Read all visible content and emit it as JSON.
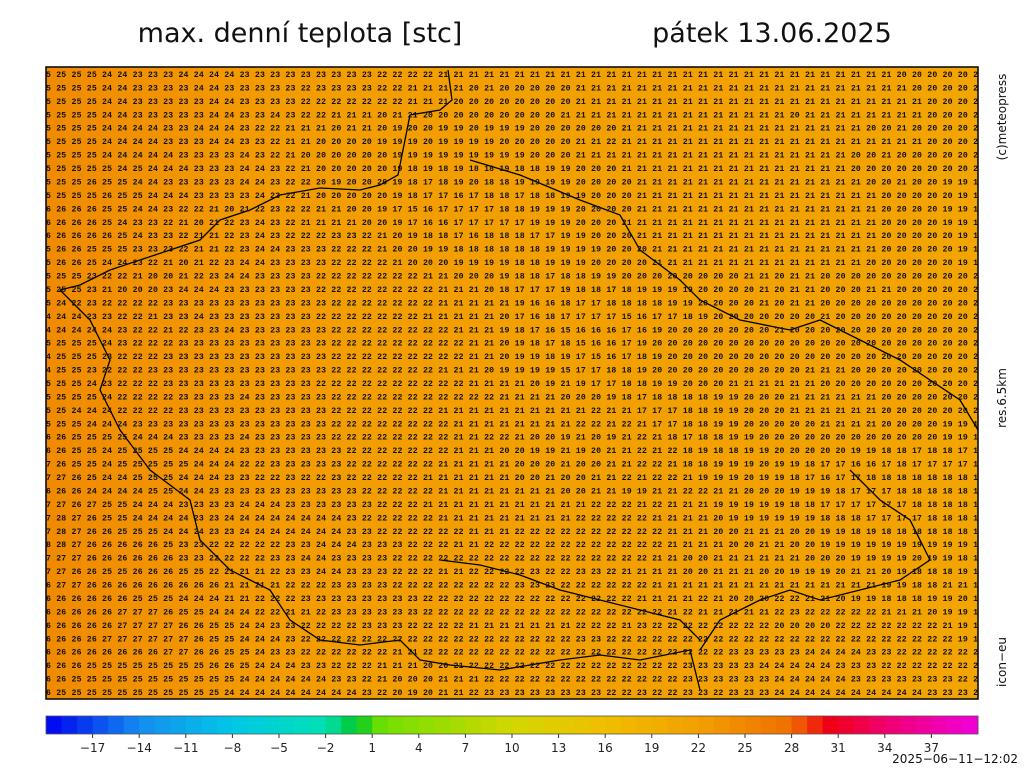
{
  "header": {
    "title": "max. denní teplota [stc]",
    "date": "pátek 13.06.2025"
  },
  "side_labels": [
    "(c)meteopress",
    "res.6.5km",
    "icon−eu"
  ],
  "grid_rows": [
    "5 25 25 25 24 24 23 23 23 24 24 24 24 23 23 23 23 23 23 23 23 23 22 22 22 22 21 21 21 21 21 21 21 21 21 21 21 21 21 21 21 21 21 21 21 21 21 21 21 21 21 21 21 21 21 21 20 20 20 20 20 2",
    "5 25 25 25 24 24 23 23 23 23 24 24 23 23 23 23 23 22 23 23 23 23 22 22 21 21 21 21 20 21 20 20 20 20 20 21 21 21 21 21 21 21 21 21 21 21 21 21 21 21 21 21 21 21 21 21 21 20 20 20 20 2",
    "5 25 25 25 24 24 23 23 23 23 23 24 24 23 23 23 23 22 22 22 22 22 22 22 21 21 21 20 20 20 20 20 20 20 20 21 21 21 21 21 21 21 21 21 21 21 21 21 21 21 21 21 21 21 21 21 21 21 20 20 20 2",
    "5 25 25 25 24 24 23 23 23 23 23 24 24 23 23 24 23 22 22 21 21 21 20 21 21 20 20 20 20 20 20 20 20 20 21 21 21 21 21 21 21 21 21 21 21 21 21 21 21 20 21 21 21 21 21 21 21 21 20 20 20 2",
    "5 25 25 25 24 24 24 24 23 23 24 24 24 23 22 22 21 21 21 20 21 21 20 19 20 20 19 19 20 19 19 19 20 20 20 20 20 20 21 21 21 21 21 21 21 21 21 21 21 21 21 21 21 21 20 20 21 20 20 20 20 2",
    "5 25 25 25 24 24 24 24 23 23 23 24 24 23 23 22 21 21 20 20 20 20 19 19 19 20 19 19 19 19 20 20 20 20 20 21 21 22 21 21 21 21 21 21 21 21 21 21 21 21 21 21 21 21 21 21 21 21 20 20 20 2",
    "5 25 25 25 24 24 24 24 24 23 23 23 23 24 23 22 21 20 20 20 20 20 20 19 19 19 19 19 19 19 19 19 20 20 20 21 21 21 21 21 21 21 21 21 21 21 21 21 21 21 21 21 21 20 20 21 20 20 20 20 20 2",
    "5 25 25 25 25 24 25 24 24 24 23 23 23 24 24 23 22 21 20 20 20 20 20 19 18 19 18 19 18 18 19 18 18 19 19 20 20 20 21 21 21 21 21 21 21 21 21 21 21 21 21 21 21 20 20 20 20 20 20 20 20 2",
    "5 25 25 26 25 25 24 24 23 23 23 23 23 24 24 23 22 22 20 19 20 20 20 19 18 17 18 19 20 18 18 19 19 19 19 20 20 20 20 21 21 21 21 21 21 21 21 21 21 21 21 21 21 21 20 20 21 20 20 19 19 1",
    "5 25 25 25 26 25 25 24 24 24 23 23 23 23 24 23 22 21 20 20 20 20 20 19 18 17 17 16 17 18 18 17 18 18 19 19 20 20 20 21 21 21 21 21 21 21 21 21 21 21 21 21 21 21 21 20 20 20 20 20 19 1",
    "6 26 26 26 25 25 24 24 23 22 22 21 20 21 22 23 22 22 21 21 20 20 19 17 15 16 17 17 17 17 18 18 19 19 19 20 20 20 20 21 21 21 21 21 21 21 21 21 21 21 21 21 21 21 21 20 20 20 20 19 19 1",
    "6 26 26 26 25 24 23 23 22 21 20 21 22 23 24 23 22 21 21 21 21 20 20 19 17 16 16 17 17 17 17 17 19 19 19 20 20 20 21 21 21 21 21 21 21 21 21 21 21 21 21 21 21 21 21 20 20 20 20 19 19 1",
    "6 26 26 26 26 25 24 23 23 22 21 21 22 23 24 23 22 22 22 23 23 22 21 20 19 18 18 17 16 18 18 18 17 17 19 19 20 20 20 21 21 21 21 21 21 21 21 21 21 21 21 21 21 21 21 20 20 20 20 20 19 1",
    "5 26 26 25 25 25 23 23 23 22 21 21 22 23 24 24 23 23 23 22 22 22 21 20 20 19 19 18 18 18 18 18 18 19 19 19 19 20 20 20 21 21 21 21 21 21 21 21 21 21 21 21 21 21 21 20 20 20 20 20 19 1",
    "5 26 26 25 24 24 23 22 21 20 21 22 23 24 24 23 23 23 23 22 22 22 22 21 20 20 20 19 19 19 19 18 18 19 19 19 20 20 20 20 21 21 21 21 21 21 21 21 21 21 21 21 21 21 20 20 20 20 20 20 19 1",
    "5 25 25 23 22 22 21 20 20 21 22 23 24 24 23 23 23 23 22 22 22 22 22 22 22 21 21 20 20 20 19 18 18 17 18 18 19 19 20 20 20 20 20 20 20 20 21 21 20 21 21 20 20 20 20 20 20 20 20 20 20 2",
    "5 25 25 23 21 20 20 20 23 24 24 24 23 23 23 23 23 23 22 22 22 22 22 22 22 22 21 21 21 20 18 17 17 17 19 18 18 17 18 19 19 19 19 20 20 20 20 21 20 21 21 20 20 20 21 21 20 20 20 20 20 2",
    "5 24 22 23 22 22 22 22 23 23 23 23 23 23 23 23 23 23 23 22 22 22 22 22 22 22 21 21 21 21 21 19 16 16 18 17 17 18 18 18 18 19 19 20 20 20 20 21 20 21 21 20 20 20 20 20 20 20 20 20 20 2",
    "4 24 24 23 23 22 22 21 23 23 24 23 23 23 23 23 23 23 22 22 22 22 22 22 22 21 21 21 21 21 20 17 16 18 17 17 17 17 15 16 17 17 18 19 20 20 20 20 20 20 20 21 20 20 20 20 20 20 20 20 20 2",
    "4 24 24 24 24 23 22 22 21 22 23 23 24 23 23 23 23 23 23 22 22 22 22 22 22 22 22 21 21 21 19 18 17 16 15 16 16 16 17 16 19 20 20 20 20 20 20 20 21 20 20 20 20 20 20 20 20 20 20 20 20 2",
    "5 25 25 25 24 23 22 22 22 23 23 23 23 23 23 23 23 23 23 22 22 22 22 22 22 22 22 22 21 21 20 19 18 17 18 15 16 16 17 19 20 20 20 20 20 20 20 20 20 20 20 20 20 20 20 20 20 20 20 20 20 2",
    "4 25 25 25 23 22 22 22 23 23 23 23 23 23 23 23 23 23 23 22 22 22 22 22 22 22 22 22 21 21 20 19 19 18 19 17 15 16 17 18 19 20 20 20 20 20 20 20 20 20 20 20 20 20 20 20 20 20 20 20 20 2",
    "4 25 25 23 22 22 22 23 23 23 23 23 23 23 23 23 23 23 23 22 22 22 22 22 22 22 21 21 21 20 19 19 19 19 15 17 17 18 18 19 20 20 20 20 20 20 20 20 20 20 21 21 21 20 20 20 20 20 20 20 20 2",
    "5 25 25 24 23 22 22 22 23 23 23 23 23 23 23 23 23 23 22 22 22 22 22 22 22 22 22 22 21 21 21 21 20 19 21 19 17 17 18 18 19 19 20 20 20 21 21 21 21 21 21 20 20 20 20 20 20 20 20 20 20 2",
    "5 25 25 25 24 22 22 22 22 23 23 23 23 24 23 23 23 23 23 22 22 22 22 22 22 22 22 22 22 22 21 21 21 21 20 20 20 19 18 17 18 18 18 18 19 19 20 20 20 21 21 21 21 21 21 20 20 20 20 20 20 2",
    "5 25 24 24 24 22 22 22 22 23 23 23 23 23 23 23 23 23 23 22 22 22 22 22 22 22 21 21 21 21 21 21 21 21 21 21 22 21 21 17 17 17 18 18 19 19 20 20 20 21 21 21 21 21 21 20 20 20 20 20 20 2",
    "5 25 25 24 24 24 23 23 23 23 23 23 23 23 23 23 23 23 23 22 22 22 22 22 22 22 22 21 21 21 21 21 21 21 21 22 22 21 22 21 17 17 18 18 19 19 20 20 20 20 20 21 21 21 21 20 20 20 20 19 19 1",
    "6 26 25 25 25 25 24 24 24 23 23 23 23 24 23 23 23 23 23 22 22 22 22 22 22 22 22 21 21 22 22 21 20 20 19 21 20 19 21 22 21 18 17 18 18 19 19 20 20 20 20 20 20 20 20 20 20 20 20 19 19 1",
    "6 26 25 25 24 25 25 25 25 24 24 24 24 23 23 23 23 23 23 23 22 22 22 22 22 22 22 21 21 21 20 20 19 19 21 19 20 21 21 22 21 22 18 19 18 18 19 19 20 20 20 20 20 19 19 18 18 17 18 18 17 1",
    "7 26 25 25 24 25 25 25 25 25 24 24 24 22 22 23 23 23 23 23 22 22 22 22 22 22 21 21 21 21 21 20 20 20 21 20 20 21 21 22 22 21 18 18 19 19 19 20 19 19 18 17 17 16 16 17 18 17 17 17 17 1",
    "7 27 26 25 24 24 25 25 25 24 24 24 23 23 22 22 23 22 22 23 22 22 22 22 22 21 21 21 21 21 21 20 20 21 20 20 21 21 22 21 22 22 21 19 19 19 20 19 19 18 17 16 17 17 18 18 18 18 18 18 18 1",
    "6 26 26 24 24 24 24 25 25 24 24 23 23 23 23 23 23 23 23 23 23 22 22 22 22 22 21 21 21 21 21 21 21 21 20 20 21 21 19 19 21 21 22 22 21 21 20 20 20 19 19 19 18 17 17 17 18 18 18 18 18 1",
    "7 27 26 27 25 25 24 24 24 23 23 23 23 24 24 24 23 23 23 23 23 23 22 22 22 21 21 21 21 21 21 21 21 21 21 21 22 22 22 21 22 21 21 21 19 19 19 19 19 18 18 17 17 17 17 17 17 18 18 18 18 1",
    "7 28 27 26 25 25 24 24 24 24 23 23 24 24 24 24 24 24 24 24 23 22 22 22 22 22 21 21 21 21 21 21 21 21 21 22 22 22 22 22 21 21 21 21 20 19 19 19 19 19 19 18 18 18 17 17 17 17 18 18 18 1",
    "7 28 27 26 26 25 25 25 24 24 24 23 23 24 24 24 24 24 24 24 23 23 22 22 22 22 22 22 21 21 21 22 22 22 22 22 22 22 22 22 22 21 21 21 20 20 21 21 21 20 20 19 19 18 19 18 18 18 18 18 18 1",
    "8 28 27 26 26 26 26 26 25 23 23 22 22 22 22 22 23 23 24 24 24 23 23 23 22 22 22 21 21 22 22 22 22 22 22 22 22 22 22 22 22 21 21 21 21 20 20 21 21 20 20 19 19 19 19 19 19 19 19 19 19 1",
    "7 27 27 26 26 26 26 26 26 23 23 22 22 22 22 23 23 24 24 23 23 23 23 22 22 22 22 22 22 22 22 22 22 22 22 22 22 22 22 22 21 21 20 20 21 21 21 21 21 21 20 20 20 19 19 19 19 20 19 19 18 1",
    "7 27 26 26 25 25 26 26 26 25 25 22 21 21 21 22 23 23 24 24 23 23 23 22 22 22 21 21 22 22 22 22 23 22 22 23 23 22 21 21 21 21 20 20 21 21 21 20 20 19 19 19 20 21 21 20 19 18 18 18 19 1",
    "6 27 27 26 26 26 26 26 26 26 26 26 21 21 21 21 22 22 22 23 23 23 23 22 22 22 22 22 22 22 22 23 23 23 22 22 22 22 22 22 21 21 21 21 21 21 21 21 21 21 21 21 21 21 21 19 19 18 18 21 21 1",
    "6 26 26 26 26 26 25 25 25 24 24 24 21 21 22 22 22 23 23 23 23 23 23 23 23 22 22 22 22 22 22 22 22 22 22 22 22 22 22 21 21 21 21 22 21 20 20 20 22 22 21 21 20 19 19 18 18 18 19 19 20 1",
    "6 26 26 26 26 27 27 27 26 25 25 24 24 24 22 22 21 21 22 23 23 23 23 23 23 22 22 22 22 22 22 22 22 22 22 22 22 22 22 22 22 21 22 21 21 21 21 21 22 23 22 22 22 22 22 21 21 21 20 19 19 1",
    "6 26 26 26 26 27 27 27 27 26 26 25 25 24 24 23 23 22 22 22 22 23 23 23 22 22 22 22 21 21 21 21 21 21 21 22 22 22 21 23 22 22 22 22 22 22 22 22 20 20 20 20 22 22 22 22 22 22 22 21 19 1",
    "6 26 26 26 27 27 27 27 27 27 26 25 25 24 24 24 23 22 22 22 22 22 22 22 22 22 22 22 22 22 22 22 22 22 22 23 23 22 22 22 22 22 22 22 22 22 22 22 22 22 22 22 22 22 22 22 22 22 22 22 19 1",
    "6 26 26 26 26 26 26 26 27 27 26 26 25 25 24 23 23 22 22 22 22 22 22 21 21 22 22 22 22 22 22 22 22 22 22 22 22 22 22 22 22 22 22 22 22 23 23 23 23 23 24 24 24 24 23 23 22 22 22 22 22 2",
    "6 26 26 25 25 25 25 25 25 25 25 26 26 25 24 24 24 23 23 22 22 22 21 21 21 20 20 21 22 22 22 22 22 22 22 22 22 22 22 22 22 22 23 23 23 23 23 24 24 24 24 24 23 23 23 22 22 22 22 22 22 2",
    "6 26 25 25 25 25 25 25 25 25 25 25 25 24 24 24 24 24 24 23 23 22 21 20 20 20 21 21 21 22 22 22 22 22 22 22 22 22 22 22 22 22 23 23 23 23 23 23 24 24 24 24 24 23 23 23 23 23 23 23 22 2",
    "6 25 25 25 25 25 25 25 25 25 25 25 24 24 24 24 24 24 24 24 24 23 22 20 19 20 21 21 22 23 23 23 23 23 23 23 23 22 22 23 22 22 23 23 22 23 23 23 24 24 24 24 24 24 24 24 24 24 23 23 23 2"
  ],
  "colorbar": {
    "lim": [
      -20,
      40
    ],
    "ticks": [
      {
        "value": -17,
        "label": "−17"
      },
      {
        "value": -14,
        "label": "−14"
      },
      {
        "value": -11,
        "label": "−11"
      },
      {
        "value": -8,
        "label": "−8"
      },
      {
        "value": -5,
        "label": "−5"
      },
      {
        "value": -2,
        "label": "−2"
      },
      1,
      4,
      7,
      10,
      13,
      16,
      19,
      22,
      25,
      28,
      31,
      34,
      37
    ]
  },
  "timestamp": "2025−06−11−12:02"
}
